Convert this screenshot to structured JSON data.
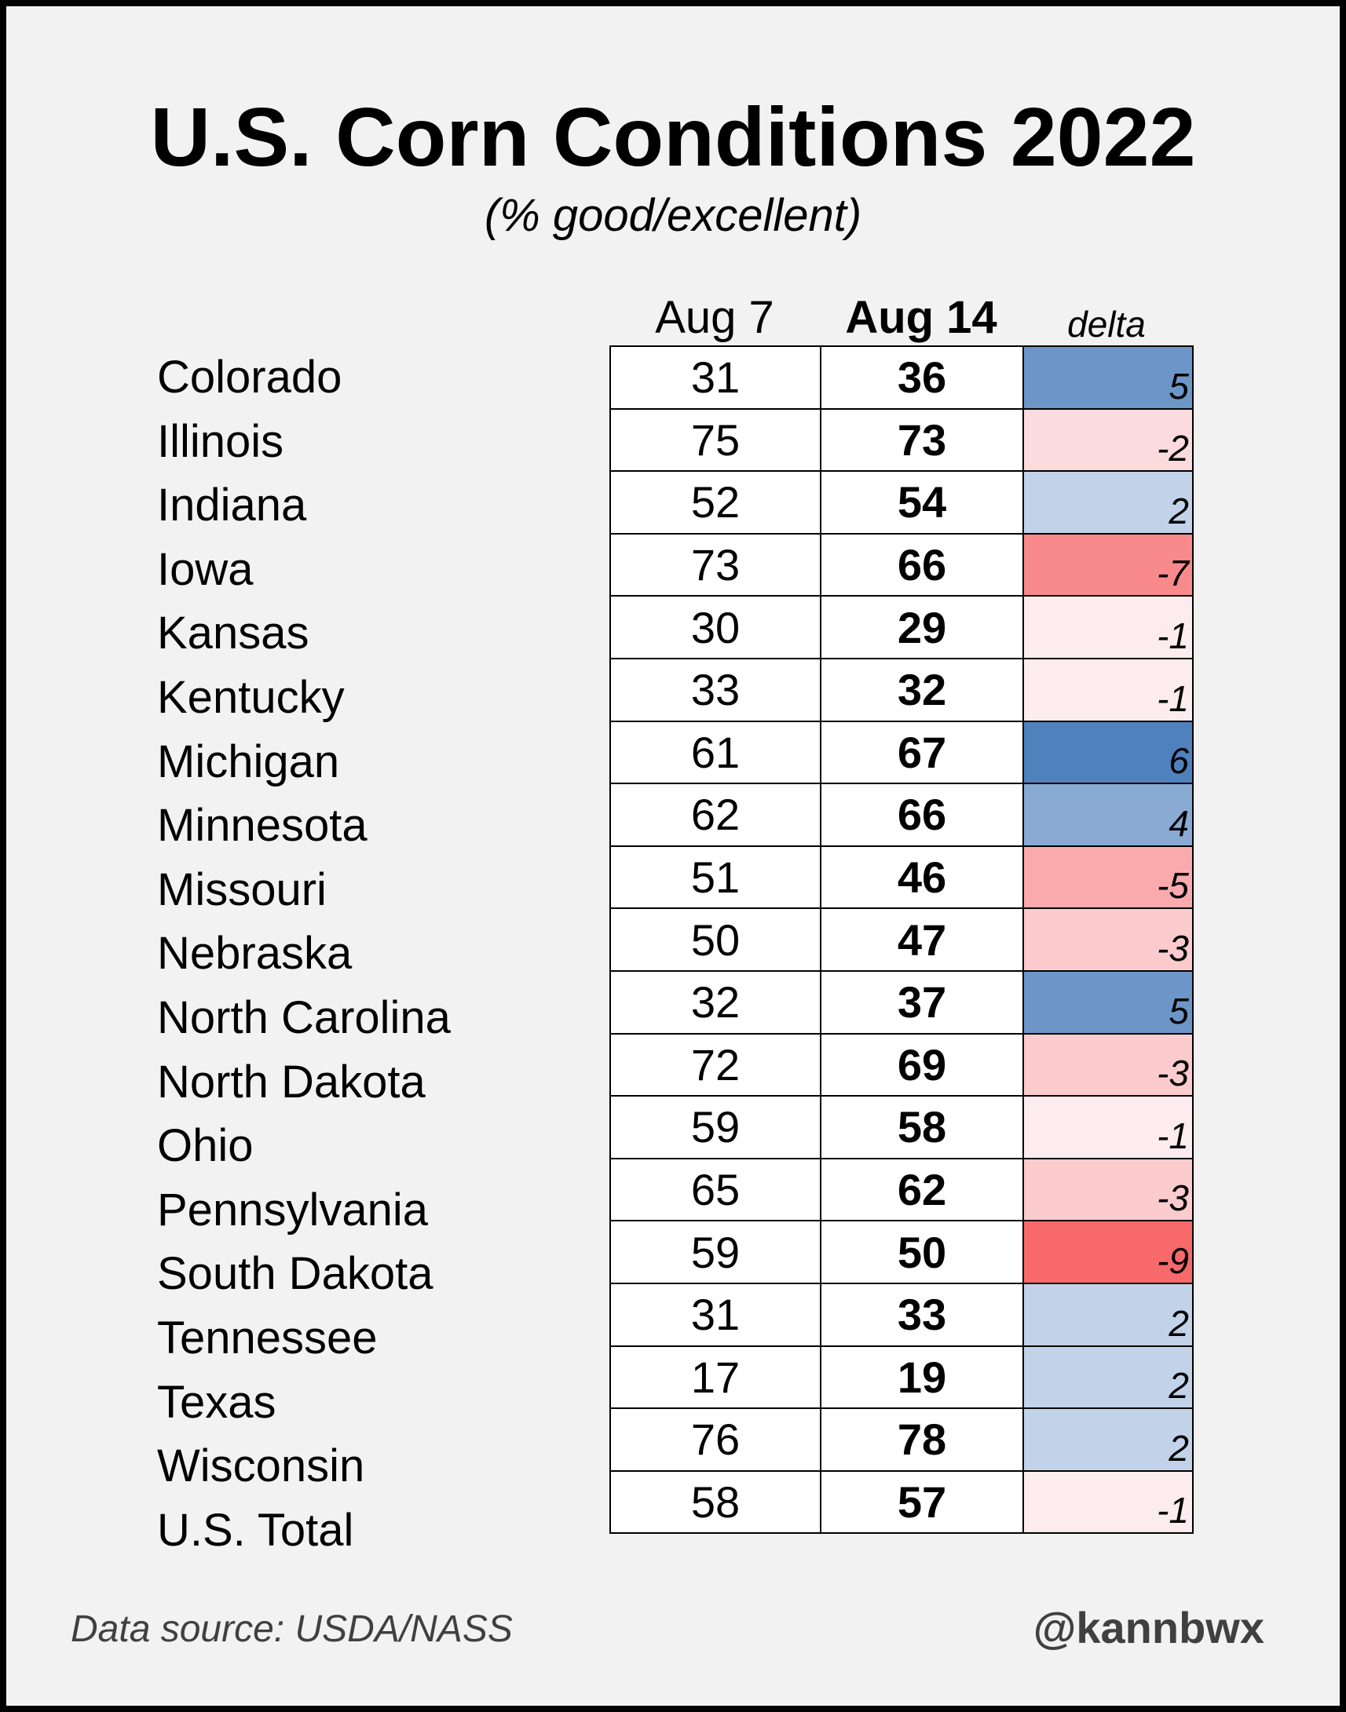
{
  "title": "U.S. Corn Conditions 2022",
  "subtitle": "(% good/excellent)",
  "footer": {
    "source": "Data source: USDA/NASS",
    "handle": "@kannbwx"
  },
  "colors": {
    "positive_strong": "#4f81bd",
    "negative_strong": "#f8696b",
    "neutral": "#fcfcff",
    "background": "#f2f2f2",
    "frame": "#000000"
  },
  "chart_data": {
    "type": "table",
    "title": "U.S. Corn Conditions 2022",
    "subtitle": "(% good/excellent)",
    "columns": [
      "Aug 7",
      "Aug 14",
      "delta"
    ],
    "rows": [
      {
        "state": "Colorado",
        "aug7": 31,
        "aug14": 36,
        "delta": 5
      },
      {
        "state": "Illinois",
        "aug7": 75,
        "aug14": 73,
        "delta": -2
      },
      {
        "state": "Indiana",
        "aug7": 52,
        "aug14": 54,
        "delta": 2
      },
      {
        "state": "Iowa",
        "aug7": 73,
        "aug14": 66,
        "delta": -7
      },
      {
        "state": "Kansas",
        "aug7": 30,
        "aug14": 29,
        "delta": -1
      },
      {
        "state": "Kentucky",
        "aug7": 33,
        "aug14": 32,
        "delta": -1
      },
      {
        "state": "Michigan",
        "aug7": 61,
        "aug14": 67,
        "delta": 6
      },
      {
        "state": "Minnesota",
        "aug7": 62,
        "aug14": 66,
        "delta": 4
      },
      {
        "state": "Missouri",
        "aug7": 51,
        "aug14": 46,
        "delta": -5
      },
      {
        "state": "Nebraska",
        "aug7": 50,
        "aug14": 47,
        "delta": -3
      },
      {
        "state": "North Carolina",
        "aug7": 32,
        "aug14": 37,
        "delta": 5
      },
      {
        "state": "North Dakota",
        "aug7": 72,
        "aug14": 69,
        "delta": -3
      },
      {
        "state": "Ohio",
        "aug7": 59,
        "aug14": 58,
        "delta": -1
      },
      {
        "state": "Pennsylvania",
        "aug7": 65,
        "aug14": 62,
        "delta": -3
      },
      {
        "state": "South Dakota",
        "aug7": 59,
        "aug14": 50,
        "delta": -9
      },
      {
        "state": "Tennessee",
        "aug7": 31,
        "aug14": 33,
        "delta": 2
      },
      {
        "state": "Texas",
        "aug7": 17,
        "aug14": 19,
        "delta": 2
      },
      {
        "state": "Wisconsin",
        "aug7": 76,
        "aug14": 78,
        "delta": 2
      },
      {
        "state": "U.S. Total",
        "aug7": 58,
        "aug14": 57,
        "delta": -1
      }
    ]
  }
}
